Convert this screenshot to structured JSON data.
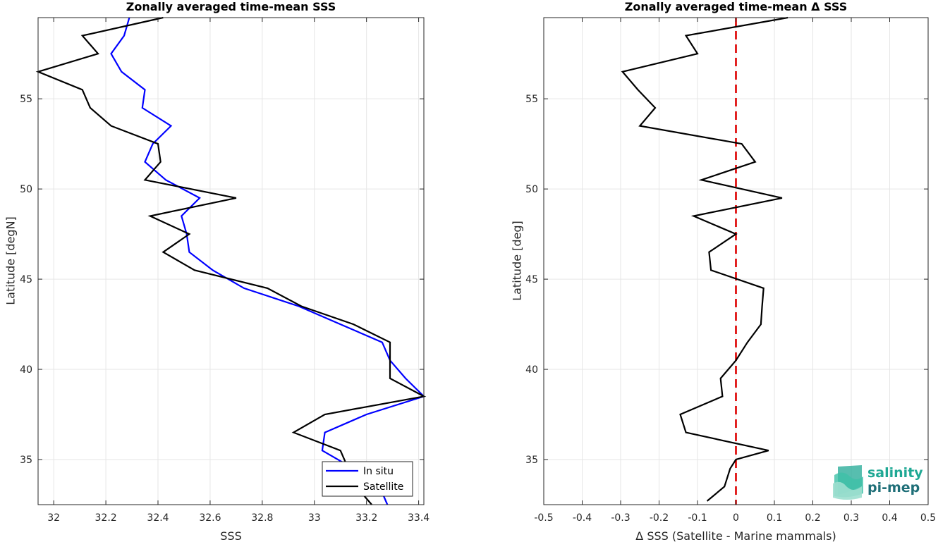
{
  "chart_data": [
    {
      "type": "line",
      "title": "Zonally averaged time-mean SSS",
      "xlabel": "SSS",
      "ylabel": "Latitude [degN]",
      "xlim": [
        31.94,
        33.42
      ],
      "ylim": [
        32.5,
        59.5
      ],
      "xticks": [
        "32",
        "32.2",
        "32.4",
        "32.6",
        "32.8",
        "33",
        "33.2",
        "33.4"
      ],
      "yticks": [
        "35",
        "40",
        "45",
        "50",
        "55"
      ],
      "grid": true,
      "legend": "bottom-right",
      "series": [
        {
          "name": "In situ",
          "color": "#0000ff",
          "points": [
            [
              33.28,
              32.5
            ],
            [
              33.25,
              33.5
            ],
            [
              33.15,
              34.5
            ],
            [
              33.03,
              35.5
            ],
            [
              33.04,
              36.5
            ],
            [
              33.2,
              37.5
            ],
            [
              33.42,
              38.5
            ],
            [
              33.35,
              39.5
            ],
            [
              33.29,
              40.5
            ],
            [
              33.26,
              41.5
            ],
            [
              33.1,
              42.5
            ],
            [
              32.94,
              43.5
            ],
            [
              32.73,
              44.5
            ],
            [
              32.61,
              45.5
            ],
            [
              32.52,
              46.5
            ],
            [
              32.51,
              47.5
            ],
            [
              32.49,
              48.5
            ],
            [
              32.56,
              49.5
            ],
            [
              32.43,
              50.5
            ],
            [
              32.35,
              51.5
            ],
            [
              32.38,
              52.5
            ],
            [
              32.45,
              53.5
            ],
            [
              32.34,
              54.5
            ],
            [
              32.35,
              55.5
            ],
            [
              32.26,
              56.5
            ],
            [
              32.22,
              57.5
            ],
            [
              32.27,
              58.5
            ],
            [
              32.29,
              59.5
            ]
          ]
        },
        {
          "name": "Satellite",
          "color": "#000000",
          "points": [
            [
              33.22,
              32.5
            ],
            [
              33.16,
              33.5
            ],
            [
              33.13,
              34.5
            ],
            [
              33.1,
              35.5
            ],
            [
              32.92,
              36.5
            ],
            [
              33.04,
              37.5
            ],
            [
              33.42,
              38.5
            ],
            [
              33.29,
              39.5
            ],
            [
              33.29,
              40.5
            ],
            [
              33.29,
              41.5
            ],
            [
              33.15,
              42.5
            ],
            [
              32.95,
              43.5
            ],
            [
              32.82,
              44.5
            ],
            [
              32.54,
              45.5
            ],
            [
              32.42,
              46.5
            ],
            [
              32.52,
              47.5
            ],
            [
              32.37,
              48.5
            ],
            [
              32.7,
              49.5
            ],
            [
              32.35,
              50.5
            ],
            [
              32.41,
              51.5
            ],
            [
              32.4,
              52.5
            ],
            [
              32.22,
              53.5
            ],
            [
              32.14,
              54.5
            ],
            [
              32.11,
              55.5
            ],
            [
              31.94,
              56.5
            ],
            [
              32.17,
              57.5
            ],
            [
              32.11,
              58.5
            ],
            [
              32.42,
              59.5
            ]
          ]
        }
      ]
    },
    {
      "type": "line",
      "title": "Zonally averaged time-mean Δ SSS",
      "xlabel": "Δ SSS (Satellite - Marine mammals)",
      "ylabel": "Latitude [deg]",
      "xlim": [
        -0.5,
        0.5
      ],
      "ylim": [
        32.5,
        59.5
      ],
      "xticks": [
        "-0.5",
        "-0.4",
        "-0.3",
        "-0.2",
        "-0.1",
        "0",
        "0.1",
        "0.2",
        "0.3",
        "0.4",
        "0.5"
      ],
      "yticks": [
        "35",
        "40",
        "45",
        "50",
        "55"
      ],
      "grid": true,
      "reference_line": {
        "x": 0,
        "color": "#dd0000",
        "style": "dashed"
      },
      "series": [
        {
          "color": "#000000",
          "points": [
            [
              -0.075,
              32.7
            ],
            [
              -0.03,
              33.5
            ],
            [
              -0.015,
              34.5
            ],
            [
              0.0,
              35.0
            ],
            [
              0.085,
              35.5
            ],
            [
              -0.13,
              36.5
            ],
            [
              -0.145,
              37.5
            ],
            [
              -0.035,
              38.5
            ],
            [
              -0.04,
              39.5
            ],
            [
              0.0,
              40.5
            ],
            [
              0.03,
              41.5
            ],
            [
              0.065,
              42.5
            ],
            [
              0.068,
              43.5
            ],
            [
              0.072,
              44.5
            ],
            [
              -0.065,
              45.5
            ],
            [
              -0.07,
              46.5
            ],
            [
              0.0,
              47.5
            ],
            [
              -0.11,
              48.5
            ],
            [
              0.12,
              49.5
            ],
            [
              -0.09,
              50.5
            ],
            [
              0.05,
              51.5
            ],
            [
              0.015,
              52.5
            ],
            [
              -0.25,
              53.5
            ],
            [
              -0.21,
              54.5
            ],
            [
              -0.255,
              55.5
            ],
            [
              -0.295,
              56.5
            ],
            [
              -0.1,
              57.5
            ],
            [
              -0.13,
              58.5
            ],
            [
              0.135,
              59.5
            ]
          ]
        }
      ],
      "logo": {
        "line1": "salinity",
        "line2": "pi-mep"
      }
    }
  ]
}
